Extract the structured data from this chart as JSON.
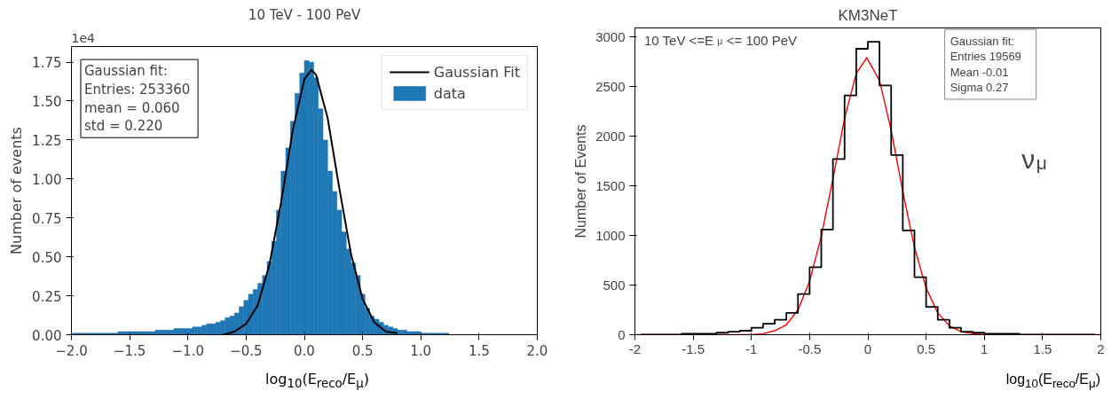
{
  "chart_data": [
    {
      "type": "histogram",
      "title": "10 TeV - 100 PeV",
      "xlabel": "log$_{10}$(E$_{reco}$/E$_{μ}$)",
      "ylabel": "Number of events",
      "annotations": [
        "1e4",
        "Gaussian fit:\n Entries: 253360\n mean = 0.060\n std = 0.220"
      ],
      "bins": [
        -2.0,
        -1.96,
        -1.92,
        -1.88,
        -1.84,
        -1.8,
        -1.76,
        -1.72,
        -1.68,
        -1.64,
        -1.6,
        -1.56,
        -1.52,
        -1.48,
        -1.44,
        -1.4,
        -1.36,
        -1.32,
        -1.28,
        -1.24,
        -1.2,
        -1.16,
        -1.12,
        -1.08,
        -1.04,
        -1.0,
        -0.96,
        -0.92,
        -0.88,
        -0.84,
        -0.8,
        -0.76,
        -0.72,
        -0.68,
        -0.64,
        -0.6,
        -0.56,
        -0.52,
        -0.48,
        -0.44,
        -0.4,
        -0.36,
        -0.32,
        -0.28,
        -0.24,
        -0.2,
        -0.16,
        -0.12,
        -0.08,
        -0.04,
        0,
        0.04,
        0.08,
        0.12,
        0.16,
        0.2,
        0.24,
        0.28,
        0.32,
        0.36,
        0.4,
        0.44,
        0.48,
        0.52,
        0.56,
        0.6,
        0.64,
        0.68,
        0.72,
        0.76,
        0.8,
        0.84,
        0.88,
        0.92,
        0.96,
        1.0,
        1.04,
        1.08,
        1.12,
        1.16,
        1.2,
        1.24,
        1.28,
        1.32,
        1.36,
        1.4,
        1.44,
        1.48,
        1.52,
        1.56,
        1.6,
        1.64,
        1.68,
        1.72,
        1.76,
        1.8,
        1.84,
        1.88,
        1.92,
        1.96,
        2.0
      ],
      "series": [
        {
          "name": "Gaussian Fit",
          "type": "line",
          "color": "#000000",
          "x": [
            -0.7,
            -0.6,
            -0.5,
            -0.4,
            -0.3,
            -0.2,
            -0.1,
            0.0,
            0.06,
            0.1,
            0.2,
            0.3,
            0.4,
            0.5,
            0.6,
            0.7,
            0.8
          ],
          "values": [
            0.0,
            0.02,
            0.07,
            0.19,
            0.45,
            0.85,
            1.31,
            1.64,
            1.7,
            1.67,
            1.39,
            0.94,
            0.52,
            0.23,
            0.08,
            0.02,
            0.01
          ]
        },
        {
          "name": "data",
          "color": "#1f77b4",
          "values": [
            0.01,
            0.01,
            0.01,
            0.01,
            0.01,
            0.01,
            0.01,
            0.01,
            0.01,
            0.01,
            0.02,
            0.02,
            0.02,
            0.02,
            0.02,
            0.02,
            0.02,
            0.02,
            0.03,
            0.03,
            0.03,
            0.03,
            0.04,
            0.04,
            0.04,
            0.04,
            0.05,
            0.05,
            0.06,
            0.07,
            0.07,
            0.08,
            0.09,
            0.11,
            0.12,
            0.14,
            0.18,
            0.22,
            0.26,
            0.29,
            0.33,
            0.38,
            0.47,
            0.6,
            0.8,
            1.05,
            1.2,
            1.37,
            1.55,
            1.68,
            1.76,
            1.75,
            1.65,
            1.45,
            1.25,
            1.05,
            0.92,
            0.8,
            0.66,
            0.55,
            0.46,
            0.38,
            0.26,
            0.17,
            0.12,
            0.1,
            0.08,
            0.06,
            0.05,
            0.04,
            0.03,
            0.03,
            0.02,
            0.02,
            0.02,
            0.01,
            0.01,
            0.01,
            0.01,
            0.01,
            0.01,
            0,
            0,
            0,
            0,
            0,
            0,
            0,
            0,
            0,
            0,
            0,
            0,
            0,
            0,
            0,
            0,
            0,
            0,
            0
          ]
        }
      ],
      "xlim": [
        -2,
        2
      ],
      "ylim": [
        0,
        1.85
      ],
      "xticks": [
        {
          "value": -2,
          "label": "−2.0"
        },
        {
          "value": -1.5,
          "label": "−1.5"
        },
        {
          "value": -1,
          "label": "−1.0"
        },
        {
          "value": -0.5,
          "label": "−0.5"
        },
        {
          "value": 0,
          "label": "0.0"
        },
        {
          "value": 0.5,
          "label": "0.5"
        },
        {
          "value": 1,
          "label": "1.0"
        },
        {
          "value": 1.5,
          "label": "1.5"
        },
        {
          "value": 2,
          "label": "2.0"
        }
      ],
      "yticks": [
        {
          "value": 0,
          "label": "0.00"
        },
        {
          "value": 0.25,
          "label": "0.25"
        },
        {
          "value": 0.5,
          "label": "0.50"
        },
        {
          "value": 0.75,
          "label": "0.75"
        },
        {
          "value": 1,
          "label": "1.00"
        },
        {
          "value": 1.25,
          "label": "1.25"
        },
        {
          "value": 1.5,
          "label": "1.50"
        },
        {
          "value": 1.75,
          "label": "1.75"
        }
      ],
      "legend": "top right"
    },
    {
      "type": "step",
      "title": "KM3NeT",
      "xlabel": "log$_{10}$(E$_{reco}$/E$_{μ}$)",
      "ylabel": "Number of Events",
      "annotations": [
        "10 TeV <=E$_{μ}$ <= 100 PeV",
        "Gaussian fit:\nEntries   19569\nMean        -0.01\nSigma        0.27",
        "ν$_{μ}$"
      ],
      "series": [
        {
          "color": "#000000",
          "x": [
            -1.95,
            -1.85,
            -1.75,
            -1.65,
            -1.55,
            -1.45,
            -1.35,
            -1.25,
            -1.15,
            -1.05,
            -0.95,
            -0.85,
            -0.75,
            -0.65,
            -0.55,
            -0.45,
            -0.35,
            -0.25,
            -0.15,
            -0.05,
            0.05,
            0.15,
            0.25,
            0.35,
            0.45,
            0.55,
            0.65,
            0.75,
            0.85,
            0.95,
            1.05,
            1.15,
            1.25,
            1.35,
            1.45,
            1.55,
            1.65,
            1.75,
            1.85,
            1.95
          ],
          "values": [
            0,
            0,
            0,
            0,
            10,
            10,
            10,
            20,
            30,
            40,
            70,
            110,
            150,
            220,
            410,
            680,
            1060,
            1770,
            2410,
            2880,
            2950,
            2510,
            1810,
            1050,
            580,
            280,
            150,
            70,
            30,
            20,
            10,
            10,
            10,
            0,
            0,
            0,
            0,
            0,
            0,
            0
          ]
        },
        {
          "type": "line",
          "color": "#ff0000",
          "x": [
            -2,
            -1.0,
            -0.9,
            -0.8,
            -0.7,
            -0.6,
            -0.5,
            -0.4,
            -0.3,
            -0.2,
            -0.1,
            -0.01,
            0.1,
            0.2,
            0.3,
            0.4,
            0.5,
            0.6,
            0.7,
            0.8,
            0.9,
            1.0,
            2
          ],
          "values": [
            0,
            0,
            10,
            40,
            100,
            250,
            540,
            990,
            1570,
            2180,
            2630,
            2790,
            2560,
            2060,
            1440,
            880,
            470,
            220,
            90,
            30,
            10,
            0,
            0
          ]
        }
      ],
      "xlim": [
        -2,
        2
      ],
      "ylim": [
        0,
        3090
      ],
      "xticks": [
        -2,
        -1.5,
        -1,
        -0.5,
        0,
        0.5,
        1,
        1.5,
        2
      ],
      "yticks": [
        0,
        500,
        1000,
        1500,
        2000,
        2500,
        3000
      ]
    }
  ]
}
